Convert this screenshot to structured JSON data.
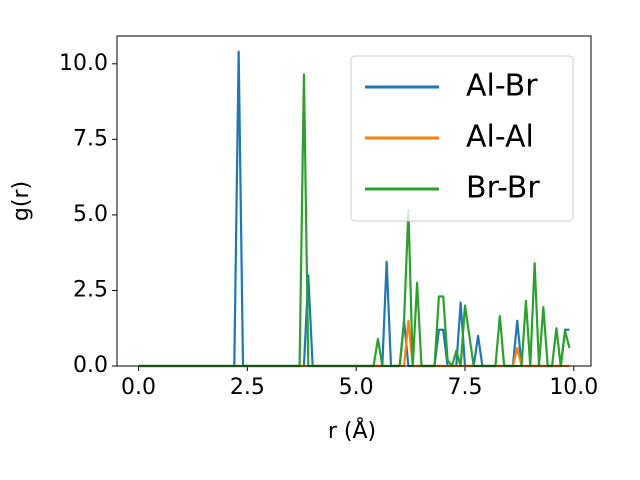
{
  "chart_data": {
    "type": "line",
    "xlabel": "r (Å)",
    "ylabel": "g(r)",
    "x": [
      0,
      2.2,
      2.3,
      2.4,
      3.6,
      3.7,
      3.8,
      3.9,
      4.0,
      5.4,
      5.5,
      5.6,
      5.7,
      5.8,
      6.0,
      6.1,
      6.2,
      6.3,
      6.4,
      6.5,
      6.8,
      6.9,
      7.0,
      7.1,
      7.2,
      7.3,
      7.4,
      7.5,
      7.6,
      7.7,
      7.8,
      7.9,
      8.2,
      8.3,
      8.4,
      8.6,
      8.7,
      8.8,
      8.9,
      9.0,
      9.1,
      9.2,
      9.3,
      9.4,
      9.5,
      9.6,
      9.7,
      9.8,
      9.9
    ],
    "series": [
      {
        "name": "Al-Br",
        "color": "#1f77b4",
        "values": [
          0,
          0,
          10.4,
          0,
          0,
          0,
          0,
          3.0,
          0,
          0,
          0,
          0,
          3.45,
          0,
          0,
          1.5,
          0,
          0,
          0,
          0,
          0,
          1.2,
          1.2,
          0,
          0,
          0,
          2.1,
          0,
          0,
          0,
          1.0,
          0,
          0,
          0,
          0,
          0,
          1.5,
          0,
          0,
          0,
          0,
          0,
          0,
          0,
          0,
          0,
          0,
          1.2,
          1.2
        ]
      },
      {
        "name": "Al-Al",
        "color": "#ff7f0e",
        "values": [
          0,
          0,
          0,
          0,
          0,
          0,
          0,
          0,
          0,
          0,
          0,
          0,
          0,
          0,
          0,
          0,
          1.5,
          0,
          0,
          0,
          0,
          0,
          0,
          0,
          0,
          0,
          0,
          0,
          0,
          0,
          0,
          0,
          0,
          0,
          0,
          0,
          0.6,
          0,
          0,
          0,
          0,
          0,
          0,
          0,
          0,
          0,
          0,
          0,
          0
        ]
      },
      {
        "name": "Br-Br",
        "color": "#2ca02c",
        "values": [
          0,
          0,
          0,
          0,
          0,
          0,
          9.65,
          0,
          0,
          0,
          0.9,
          0,
          0,
          0,
          0,
          1.5,
          5.15,
          0,
          2.75,
          0,
          0,
          2.3,
          2.3,
          0.2,
          0,
          0.5,
          0,
          2.0,
          1.0,
          0,
          0,
          0,
          0,
          1.65,
          0,
          0,
          0,
          0,
          2.15,
          0,
          3.4,
          0,
          1.95,
          0,
          0,
          1.25,
          0,
          1.15,
          0.6
        ]
      }
    ],
    "xlim": [
      -0.495,
      10.395
    ],
    "xticks": [
      {
        "value": 0,
        "label": "0.0"
      },
      {
        "value": 2.5,
        "label": "2.5"
      },
      {
        "value": 5,
        "label": "5.0"
      },
      {
        "value": 7.5,
        "label": "7.5"
      },
      {
        "value": 10,
        "label": "10.0"
      }
    ],
    "ylim": [
      0,
      10.92
    ],
    "yticks": [
      {
        "value": 0,
        "label": "0.0"
      },
      {
        "value": 2.5,
        "label": "2.5"
      },
      {
        "value": 5,
        "label": "5.0"
      },
      {
        "value": 7.5,
        "label": "7.5"
      },
      {
        "value": 10,
        "label": "10.0"
      }
    ],
    "legend": "upper right"
  }
}
